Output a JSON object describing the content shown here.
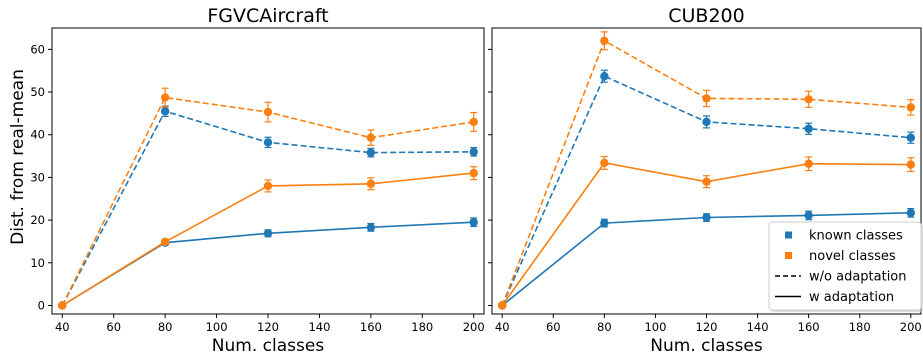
{
  "figure": {
    "ylabel": "Dist. from real-mean",
    "colors": {
      "known": "#1f77b4",
      "novel": "#ff7f0e"
    },
    "legend": {
      "placement": "lower-right of second panel",
      "entries": [
        {
          "label": "known classes",
          "kind": "marker",
          "color": "#1f77b4"
        },
        {
          "label": "novel classes",
          "kind": "marker",
          "color": "#ff7f0e"
        },
        {
          "label": "w/o adaptation",
          "kind": "line",
          "style": "dashed"
        },
        {
          "label": "w adaptation",
          "kind": "line",
          "style": "solid"
        }
      ]
    }
  },
  "chart_data": [
    {
      "type": "line",
      "title": "FGVCAircraft",
      "xlabel": "Num. classes",
      "ylabel": "Dist. from real-mean",
      "xlim": [
        36,
        204
      ],
      "ylim": [
        -2,
        65
      ],
      "x_ticks": [
        40,
        60,
        80,
        100,
        120,
        140,
        160,
        180,
        200
      ],
      "y_ticks": [
        0,
        10,
        20,
        30,
        40,
        50,
        60
      ],
      "grid": false,
      "x": [
        40,
        80,
        120,
        160,
        200
      ],
      "series": [
        {
          "name": "known classes w/o adaptation",
          "group": "known",
          "style": "dashed",
          "values": [
            0,
            45.5,
            38.2,
            35.8,
            36.0
          ],
          "errors": [
            0,
            1.2,
            1.2,
            1.0,
            1.0
          ]
        },
        {
          "name": "novel classes w/o adaptation",
          "group": "novel",
          "style": "dashed",
          "values": [
            0,
            48.7,
            45.3,
            39.3,
            43.0
          ],
          "errors": [
            0,
            2.2,
            2.3,
            1.8,
            2.2
          ]
        },
        {
          "name": "known classes w adaptation",
          "group": "known",
          "style": "solid",
          "values": [
            0,
            14.7,
            16.9,
            18.3,
            19.5
          ],
          "errors": [
            0,
            0.5,
            0.8,
            0.9,
            1.0
          ]
        },
        {
          "name": "novel classes w adaptation",
          "group": "novel",
          "style": "solid",
          "values": [
            0,
            14.9,
            28.0,
            28.5,
            31.0
          ],
          "errors": [
            0,
            0.5,
            1.4,
            1.4,
            1.5
          ]
        }
      ]
    },
    {
      "type": "line",
      "title": "CUB200",
      "xlabel": "Num. classes",
      "xlim": [
        36,
        204
      ],
      "ylim": [
        -2,
        65
      ],
      "x_ticks": [
        40,
        60,
        80,
        100,
        120,
        140,
        160,
        180,
        200
      ],
      "grid": false,
      "x": [
        40,
        80,
        120,
        160,
        200
      ],
      "series": [
        {
          "name": "known classes w/o adaptation",
          "group": "known",
          "style": "dashed",
          "values": [
            0,
            53.7,
            43.0,
            41.4,
            39.3
          ],
          "errors": [
            0,
            1.4,
            1.4,
            1.3,
            1.3
          ]
        },
        {
          "name": "novel classes w/o adaptation",
          "group": "novel",
          "style": "dashed",
          "values": [
            0,
            62.0,
            48.5,
            48.3,
            46.4
          ],
          "errors": [
            0,
            2.1,
            1.9,
            1.9,
            1.8
          ]
        },
        {
          "name": "known classes w adaptation",
          "group": "known",
          "style": "solid",
          "values": [
            0,
            19.3,
            20.6,
            21.1,
            21.7
          ],
          "errors": [
            0,
            0.9,
            0.9,
            1.0,
            1.0
          ]
        },
        {
          "name": "novel classes w adaptation",
          "group": "novel",
          "style": "solid",
          "values": [
            0,
            33.4,
            29.0,
            33.2,
            33.0
          ],
          "errors": [
            0,
            1.5,
            1.4,
            1.6,
            1.6
          ]
        }
      ]
    }
  ]
}
